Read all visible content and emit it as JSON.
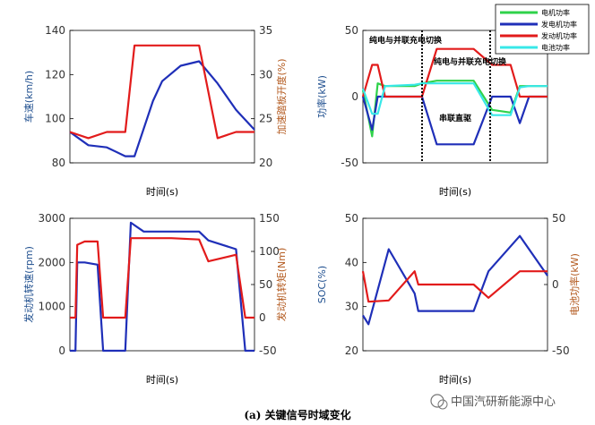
{
  "caption": "(a) 关键信号时域变化",
  "watermark": "中国汽研新能源中心",
  "colors": {
    "blue": "#1f2fb8",
    "red": "#e21b1b",
    "green": "#2fd24a",
    "cyan": "#38e8e8",
    "left_axis": "#1f4f8f",
    "right_axis": "#b35a1f"
  },
  "chart_data": [
    {
      "type": "line",
      "xlabel": "时间(s)",
      "ylabel_left": "车速(km/h)",
      "ylabel_right": "加速踏板开度(%)",
      "ylim_left": [
        80,
        140
      ],
      "yticks_left": [
        80,
        100,
        120,
        140
      ],
      "ylim_right": [
        20,
        35
      ],
      "yticks_right": [
        20,
        25,
        30,
        35
      ],
      "grid": false,
      "x": [
        0,
        10,
        20,
        30,
        35,
        45,
        50,
        60,
        70,
        80,
        90,
        100
      ],
      "series": [
        {
          "axis": "left",
          "color": "blue",
          "values": [
            94,
            88,
            87,
            83,
            83,
            108,
            117,
            124,
            126,
            116,
            104,
            95
          ]
        },
        {
          "axis": "right",
          "color": "red",
          "values": [
            23.5,
            22.8,
            23.5,
            23.5,
            33.3,
            33.3,
            33.3,
            33.3,
            33.3,
            22.8,
            23.5,
            23.5
          ]
        }
      ]
    },
    {
      "type": "line",
      "xlabel": "时间(s)",
      "ylabel_left": "功率(kW)",
      "ylim_left": [
        -50,
        50
      ],
      "yticks_left": [
        -50,
        0,
        50
      ],
      "grid": false,
      "legend": {
        "placement": "top-right",
        "entries": [
          "电机功率",
          "发电机功率",
          "发动机功率",
          "电池功率"
        ]
      },
      "annotations": [
        "纯电与并联充电切换",
        "纯电与并联充电切换",
        "串联直驱"
      ],
      "x": [
        0,
        5,
        8,
        12,
        28,
        32,
        40,
        50,
        60,
        70,
        80,
        85,
        90,
        100
      ],
      "series": [
        {
          "name": "电机功率",
          "color": "green",
          "values": [
            5,
            -30,
            10,
            8,
            8,
            10,
            12,
            12,
            12,
            -10,
            -12,
            8,
            8,
            8
          ]
        },
        {
          "name": "发电机功率",
          "color": "blue",
          "values": [
            0,
            -25,
            0,
            0,
            0,
            0,
            -36,
            -36,
            -36,
            0,
            0,
            -20,
            0,
            0
          ]
        },
        {
          "name": "发动机功率",
          "color": "red",
          "values": [
            0,
            24,
            24,
            0,
            0,
            0,
            36,
            36,
            36,
            24,
            24,
            0,
            0,
            0
          ]
        },
        {
          "name": "电池功率",
          "color": "cyan",
          "values": [
            6,
            -13,
            -13,
            8,
            9,
            10,
            10,
            10,
            10,
            -14,
            -14,
            7,
            8,
            8
          ]
        }
      ]
    },
    {
      "type": "line",
      "xlabel": "时间(s)",
      "ylabel_left": "发动机转速(rpm)",
      "ylabel_right": "发动机转矩(Nm)",
      "ylim_left": [
        0,
        3000
      ],
      "yticks_left": [
        0,
        1000,
        2000,
        3000
      ],
      "ylim_right": [
        -50,
        150
      ],
      "yticks_right": [
        -50,
        0,
        50,
        100,
        150
      ],
      "grid": false,
      "x": [
        0,
        3,
        4,
        8,
        15,
        18,
        20,
        30,
        33,
        40,
        55,
        70,
        75,
        90,
        95,
        100
      ],
      "series": [
        {
          "axis": "left",
          "color": "blue",
          "values": [
            0,
            0,
            2000,
            2000,
            1950,
            0,
            0,
            0,
            2900,
            2700,
            2700,
            2700,
            2500,
            2300,
            0,
            0
          ]
        },
        {
          "axis": "right",
          "color": "red",
          "values": [
            0,
            0,
            110,
            115,
            115,
            0,
            0,
            0,
            120,
            120,
            120,
            118,
            85,
            95,
            0,
            0
          ]
        }
      ]
    },
    {
      "type": "line",
      "xlabel": "时间(s)",
      "ylabel_left": "SOC(%)",
      "ylabel_right": "电池功率(kW)",
      "ylim_left": [
        20,
        50
      ],
      "yticks_left": [
        20,
        30,
        40,
        50
      ],
      "ylim_right": [
        -50,
        50
      ],
      "yticks_right": [
        -50,
        0,
        50
      ],
      "grid": false,
      "x": [
        0,
        3,
        14,
        28,
        30,
        40,
        50,
        60,
        68,
        85,
        100
      ],
      "series": [
        {
          "axis": "left",
          "color": "blue",
          "values": [
            28,
            26,
            43,
            33,
            29,
            29,
            29,
            29,
            38,
            46,
            37
          ]
        },
        {
          "axis": "right",
          "color": "red",
          "values": [
            10,
            -13,
            -12,
            10,
            0,
            0,
            0,
            0,
            -10,
            10,
            10
          ]
        }
      ]
    }
  ]
}
